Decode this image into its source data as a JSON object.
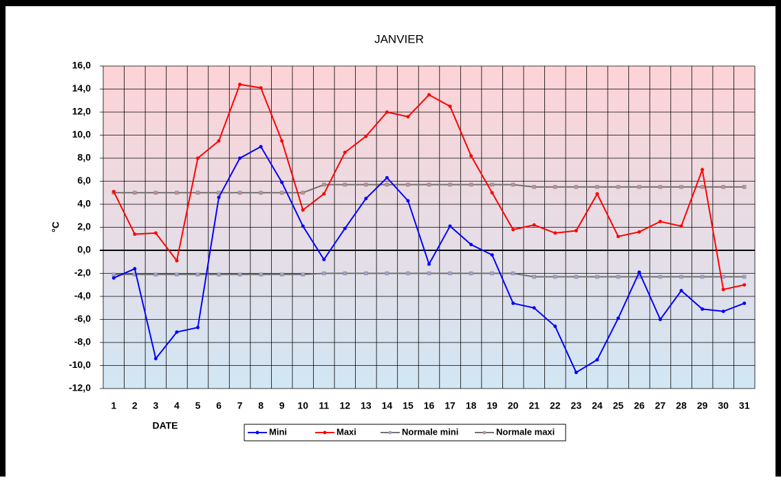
{
  "chart_data": {
    "type": "line",
    "title": "JANVIER",
    "y_label": "°C",
    "x_label": "DATE",
    "categories": [
      "1",
      "2",
      "3",
      "4",
      "5",
      "6",
      "7",
      "8",
      "9",
      "10",
      "11",
      "12",
      "13",
      "14",
      "15",
      "16",
      "17",
      "18",
      "19",
      "20",
      "21",
      "22",
      "23",
      "24",
      "25",
      "26",
      "27",
      "28",
      "29",
      "30",
      "31"
    ],
    "series": [
      {
        "name": "Mini",
        "color": "#0000ff",
        "marker_color": "#0000ff",
        "values": [
          -2.4,
          -1.6,
          -9.4,
          -7.1,
          -6.7,
          4.6,
          8.0,
          9.0,
          5.9,
          2.1,
          -0.8,
          1.9,
          4.5,
          6.3,
          4.3,
          -1.2,
          2.1,
          0.5,
          -0.4,
          -4.6,
          -5.0,
          -6.6,
          -10.6,
          -9.5,
          -5.9,
          -1.9,
          -6.0,
          -3.5,
          -5.1,
          -5.3,
          -4.6
        ]
      },
      {
        "name": "Maxi",
        "color": "#ff0000",
        "marker_color": "#ff0000",
        "values": [
          5.1,
          1.4,
          1.5,
          -0.9,
          8.0,
          9.5,
          14.4,
          14.1,
          9.5,
          3.5,
          4.9,
          8.5,
          9.9,
          12.0,
          11.6,
          13.5,
          12.5,
          8.2,
          5.0,
          1.8,
          2.2,
          1.5,
          1.7,
          4.9,
          1.2,
          1.6,
          2.5,
          2.1,
          7.0,
          -3.4,
          -3.0
        ]
      },
      {
        "name": "Normale mini",
        "color": "#707070",
        "marker_color": "#a0a0d0",
        "values": [
          -2.1,
          -2.1,
          -2.1,
          -2.1,
          -2.1,
          -2.1,
          -2.1,
          -2.1,
          -2.1,
          -2.1,
          -2.0,
          -2.0,
          -2.0,
          -2.0,
          -2.0,
          -2.0,
          -2.0,
          -2.0,
          -2.0,
          -2.0,
          -2.3,
          -2.3,
          -2.3,
          -2.3,
          -2.3,
          -2.3,
          -2.3,
          -2.3,
          -2.3,
          -2.3,
          -2.3
        ]
      },
      {
        "name": "Normale maxi",
        "color": "#707070",
        "marker_color": "#c09090",
        "values": [
          5.0,
          5.0,
          5.0,
          5.0,
          5.0,
          5.0,
          5.0,
          5.0,
          5.0,
          5.0,
          5.7,
          5.7,
          5.7,
          5.7,
          5.7,
          5.7,
          5.7,
          5.7,
          5.7,
          5.7,
          5.5,
          5.5,
          5.5,
          5.5,
          5.5,
          5.5,
          5.5,
          5.5,
          5.5,
          5.5,
          5.5
        ]
      }
    ],
    "ylim": [
      -12,
      16
    ],
    "yticks": [
      {
        "value": -12,
        "label": "-12,0"
      },
      {
        "value": -10,
        "label": "-10,0"
      },
      {
        "value": -8,
        "label": "-8,0"
      },
      {
        "value": -6,
        "label": "-6,0"
      },
      {
        "value": -4,
        "label": "-4,0"
      },
      {
        "value": -2,
        "label": "-2,0"
      },
      {
        "value": 0,
        "label": "0,0"
      },
      {
        "value": 2,
        "label": "2,0"
      },
      {
        "value": 4,
        "label": "4,0"
      },
      {
        "value": 6,
        "label": "6,0"
      },
      {
        "value": 8,
        "label": "8,0"
      },
      {
        "value": 10,
        "label": "10,0"
      },
      {
        "value": 12,
        "label": "12,0"
      },
      {
        "value": 14,
        "label": "14,0"
      },
      {
        "value": 16,
        "label": "16,0"
      }
    ],
    "grid": true
  }
}
